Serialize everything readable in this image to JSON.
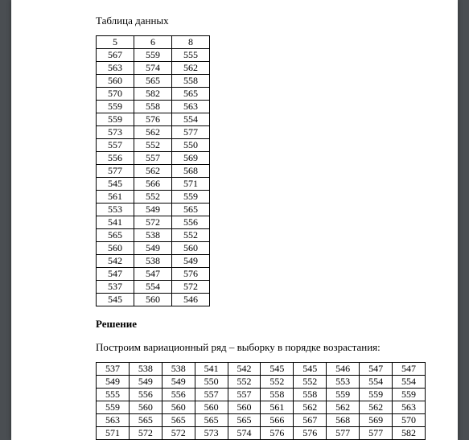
{
  "heading1": "Таблица данных",
  "table1": {
    "header": [
      "5",
      "6",
      "8"
    ],
    "rows": [
      [
        "567",
        "559",
        "555"
      ],
      [
        "563",
        "574",
        "562"
      ],
      [
        "560",
        "565",
        "558"
      ],
      [
        "570",
        "582",
        "565"
      ],
      [
        "559",
        "558",
        "563"
      ],
      [
        "559",
        "576",
        "554"
      ],
      [
        "573",
        "562",
        "577"
      ],
      [
        "557",
        "552",
        "550"
      ],
      [
        "556",
        "557",
        "569"
      ],
      [
        "577",
        "562",
        "568"
      ],
      [
        "545",
        "566",
        "571"
      ],
      [
        "561",
        "552",
        "559"
      ],
      [
        "553",
        "549",
        "565"
      ],
      [
        "541",
        "572",
        "556"
      ],
      [
        "565",
        "538",
        "552"
      ],
      [
        "560",
        "549",
        "560"
      ],
      [
        "542",
        "538",
        "549"
      ],
      [
        "547",
        "547",
        "576"
      ],
      [
        "537",
        "554",
        "572"
      ],
      [
        "545",
        "560",
        "546"
      ]
    ]
  },
  "solution_title": "Решение",
  "solution_text": "Построим вариационный ряд – выборку в порядке возрастания:",
  "table2": {
    "rows": [
      [
        "537",
        "538",
        "538",
        "541",
        "542",
        "545",
        "545",
        "546",
        "547",
        "547"
      ],
      [
        "549",
        "549",
        "549",
        "550",
        "552",
        "552",
        "552",
        "553",
        "554",
        "554"
      ],
      [
        "555",
        "556",
        "556",
        "557",
        "557",
        "558",
        "558",
        "559",
        "559",
        "559"
      ],
      [
        "559",
        "560",
        "560",
        "560",
        "560",
        "561",
        "562",
        "562",
        "562",
        "563"
      ],
      [
        "563",
        "565",
        "565",
        "565",
        "565",
        "566",
        "567",
        "568",
        "569",
        "570"
      ],
      [
        "571",
        "572",
        "572",
        "573",
        "574",
        "576",
        "576",
        "577",
        "577",
        "582"
      ]
    ]
  },
  "style": {
    "page_bg": "#ffffff",
    "outer_bg": "#4a4e52",
    "border_color": "#000000",
    "text_color": "#000000",
    "font_family": "Times New Roman",
    "heading_fontsize_pt": 10,
    "cell_fontsize_pt": 9
  }
}
